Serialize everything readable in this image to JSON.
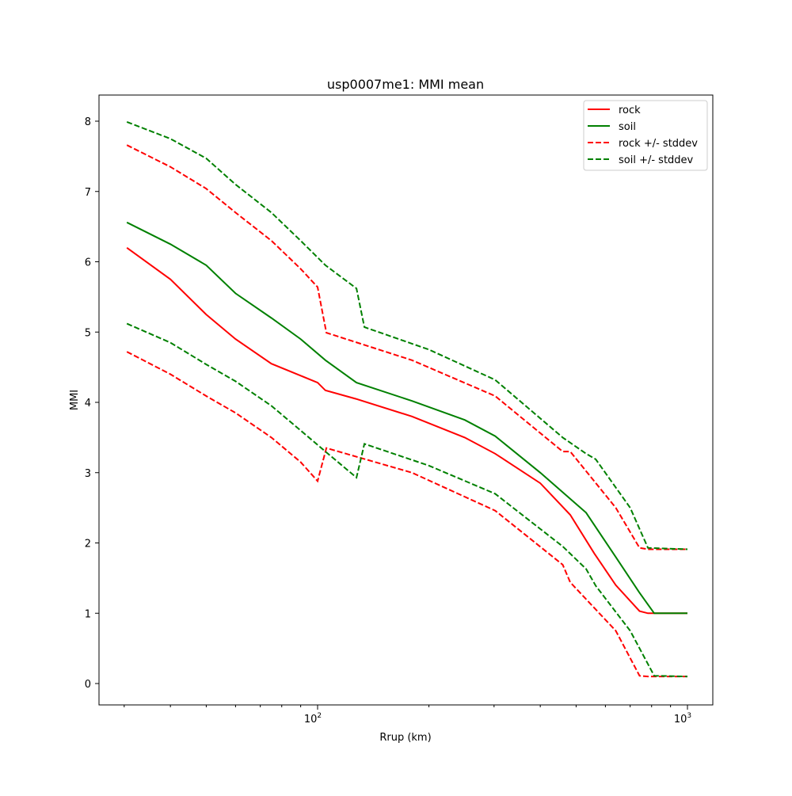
{
  "chart_data": {
    "type": "line",
    "title": "usp0007me1: MMI mean",
    "xlabel": "Rrup (km)",
    "ylabel": "MMI",
    "xscale": "log",
    "xlim": [
      27,
      1180
    ],
    "ylim": [
      -0.3,
      8.35
    ],
    "xticks": [
      {
        "value": 100,
        "base": "10",
        "exp": "2"
      },
      {
        "value": 1000,
        "base": "10",
        "exp": "3"
      }
    ],
    "yticks": [
      0,
      1,
      2,
      3,
      4,
      5,
      6,
      7,
      8
    ],
    "legend_position": "top-right",
    "series": [
      {
        "name": "rock",
        "color": "#ff0000",
        "dash": false,
        "x": [
          30.5,
          40,
          50,
          60,
          75,
          90,
          100,
          105,
          127,
          180,
          250,
          302,
          400,
          482,
          560,
          640,
          742,
          782,
          1000
        ],
        "y": [
          6.2,
          5.75,
          5.25,
          4.9,
          4.55,
          4.38,
          4.28,
          4.17,
          4.05,
          3.8,
          3.5,
          3.27,
          2.85,
          2.4,
          1.85,
          1.4,
          1.03,
          1.0,
          1.0
        ]
      },
      {
        "name": "soil",
        "color": "#008000",
        "dash": false,
        "x": [
          30.5,
          40,
          50,
          60,
          75,
          90,
          105,
          127.4,
          180,
          250,
          302,
          400,
          532,
          640,
          740,
          813,
          1000
        ],
        "y": [
          6.56,
          6.25,
          5.95,
          5.55,
          5.2,
          4.9,
          4.6,
          4.28,
          4.02,
          3.75,
          3.52,
          3.0,
          2.43,
          1.8,
          1.3,
          1.0,
          1.0
        ]
      },
      {
        "name": "rock +/- stddev",
        "color": "#ff0000",
        "dash": true,
        "x": [
          30.5,
          40,
          50,
          60,
          75,
          90,
          100,
          105.6,
          180,
          302,
          460,
          482,
          640,
          742,
          782,
          1000
        ],
        "y": [
          7.66,
          7.35,
          7.04,
          6.7,
          6.3,
          5.9,
          5.64,
          4.99,
          4.6,
          4.09,
          3.3,
          3.3,
          2.5,
          1.93,
          1.91,
          1.91
        ]
      },
      {
        "name": "rock +/- stddev (lower)",
        "color": "#ff0000",
        "dash": true,
        "legend": false,
        "x": [
          30.5,
          40,
          50,
          60,
          75,
          90,
          100,
          105.6,
          180,
          302,
          460,
          482,
          640,
          742,
          782,
          1000
        ],
        "y": [
          4.72,
          4.4,
          4.09,
          3.85,
          3.5,
          3.15,
          2.88,
          3.35,
          3.0,
          2.46,
          1.69,
          1.44,
          0.75,
          0.11,
          0.1,
          0.1
        ]
      },
      {
        "name": "soil +/- stddev",
        "color": "#008000",
        "dash": true,
        "x": [
          30.5,
          40,
          50,
          60,
          75,
          90,
          105,
          127.4,
          133.8,
          200,
          302,
          460,
          532,
          565,
          700,
          782,
          1000
        ],
        "y": [
          7.99,
          7.75,
          7.47,
          7.1,
          6.7,
          6.3,
          5.95,
          5.62,
          5.07,
          4.75,
          4.32,
          3.5,
          3.27,
          3.19,
          2.5,
          1.93,
          1.91
        ]
      },
      {
        "name": "soil +/- stddev (lower)",
        "color": "#008000",
        "dash": true,
        "legend": false,
        "x": [
          30.5,
          40,
          50,
          60,
          75,
          90,
          105,
          127.4,
          133.8,
          200,
          302,
          460,
          532,
          565,
          700,
          813,
          1000
        ],
        "y": [
          5.12,
          4.85,
          4.54,
          4.3,
          3.95,
          3.6,
          3.3,
          2.93,
          3.41,
          3.1,
          2.7,
          1.95,
          1.63,
          1.39,
          0.75,
          0.11,
          0.1
        ]
      }
    ]
  }
}
